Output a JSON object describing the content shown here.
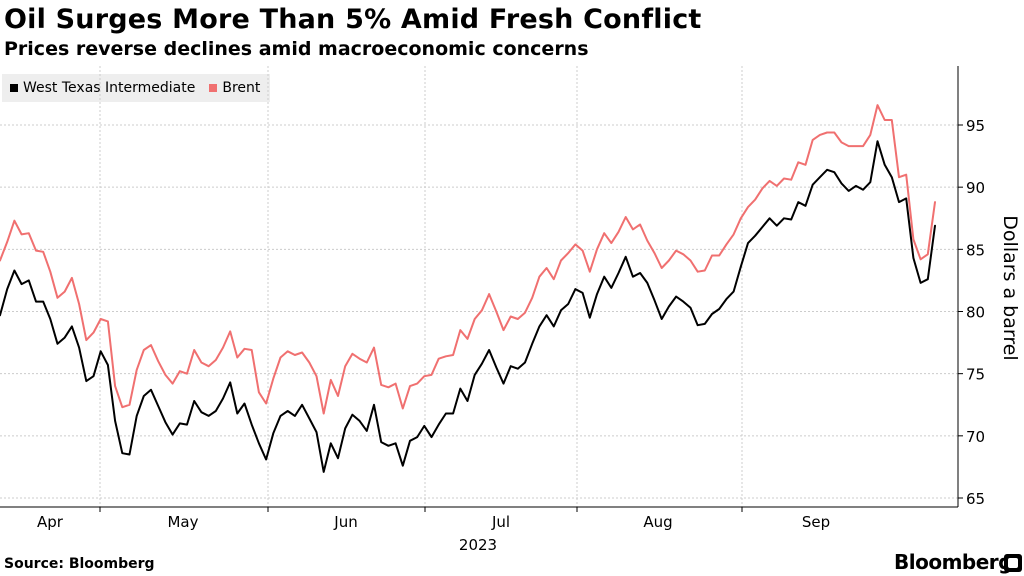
{
  "header": {
    "title": "Oil Surges More Than 5% Amid Fresh Conflict",
    "subtitle": "Prices reverse declines amid macroeconomic concerns"
  },
  "footer": {
    "source": "Source: Bloomberg",
    "brand": "Bloomberg"
  },
  "chart_data": {
    "type": "line",
    "title": "Oil Surges More Than 5% Amid Fresh Conflict",
    "subtitle": "Prices reverse declines amid macroeconomic concerns",
    "ylabel": "Dollars a barrel",
    "xlabel": "2023",
    "y_axis_position": "right",
    "ylim": [
      64,
      99
    ],
    "yticks": [
      65,
      70,
      75,
      80,
      85,
      90,
      95
    ],
    "x_tick_labels": [
      "Apr",
      "May",
      "Jun",
      "Jul",
      "Aug",
      "Sep"
    ],
    "year_label": "2023",
    "grid": true,
    "legend_position": "top-left",
    "colors": {
      "wti": "#000000",
      "brent": "#f07070",
      "grid": "#cccccc",
      "legend_bg": "#eeeeee"
    },
    "series": [
      {
        "name": "West Texas Intermediate",
        "color": "#000000",
        "values": [
          79.7,
          81.8,
          83.3,
          82.2,
          82.5,
          80.8,
          80.8,
          79.4,
          77.4,
          77.9,
          78.8,
          77.1,
          74.4,
          74.8,
          76.8,
          75.7,
          71.2,
          68.6,
          68.5,
          71.6,
          73.2,
          73.7,
          72.4,
          71.1,
          70.1,
          71.0,
          70.9,
          72.8,
          71.9,
          71.6,
          72.0,
          73.0,
          74.3,
          71.8,
          72.6,
          70.9,
          69.4,
          68.1,
          70.2,
          71.6,
          72.0,
          71.6,
          72.5,
          71.4,
          70.3,
          67.1,
          69.4,
          68.2,
          70.6,
          71.7,
          71.2,
          70.4,
          72.5,
          69.5,
          69.2,
          69.4,
          67.6,
          69.6,
          69.9,
          70.8,
          69.9,
          70.9,
          71.8,
          71.8,
          73.8,
          72.8,
          74.9,
          75.8,
          76.9,
          75.5,
          74.2,
          75.6,
          75.4,
          75.9,
          77.4,
          78.8,
          79.7,
          78.8,
          80.1,
          80.6,
          81.8,
          81.5,
          79.5,
          81.4,
          82.8,
          81.9,
          83.1,
          84.4,
          82.8,
          83.1,
          82.3,
          80.9,
          79.4,
          80.4,
          81.2,
          80.8,
          80.3,
          78.9,
          79.0,
          79.8,
          80.2,
          81.0,
          81.6,
          83.6,
          85.5,
          86.1,
          86.8,
          87.5,
          86.9,
          87.5,
          87.4,
          88.8,
          88.5,
          90.2,
          90.8,
          91.4,
          91.2,
          90.3,
          89.7,
          90.1,
          89.8,
          90.4,
          93.7,
          91.8,
          90.8,
          88.8,
          89.1,
          84.3,
          82.3,
          82.6,
          86.9
        ]
      },
      {
        "name": "Brent",
        "color": "#f07070",
        "values": [
          84.1,
          85.6,
          87.3,
          86.2,
          86.3,
          84.9,
          84.8,
          83.2,
          81.1,
          81.6,
          82.7,
          80.6,
          77.7,
          78.3,
          79.4,
          79.2,
          74.0,
          72.3,
          72.5,
          75.3,
          76.9,
          77.3,
          76.0,
          74.9,
          74.2,
          75.2,
          75.0,
          76.9,
          75.9,
          75.6,
          76.1,
          77.1,
          78.4,
          76.3,
          77.0,
          76.9,
          73.5,
          72.6,
          74.6,
          76.3,
          76.8,
          76.5,
          76.7,
          75.9,
          74.8,
          71.8,
          74.5,
          73.2,
          75.6,
          76.6,
          76.2,
          75.9,
          77.1,
          74.1,
          73.9,
          74.2,
          72.2,
          74.0,
          74.2,
          74.8,
          74.9,
          76.2,
          76.4,
          76.5,
          78.5,
          77.8,
          79.4,
          80.1,
          81.4,
          80.0,
          78.5,
          79.6,
          79.4,
          79.9,
          81.1,
          82.8,
          83.5,
          82.6,
          84.1,
          84.7,
          85.4,
          84.9,
          83.2,
          85.0,
          86.3,
          85.5,
          86.4,
          87.6,
          86.6,
          87.0,
          85.7,
          84.7,
          83.5,
          84.1,
          84.9,
          84.6,
          84.1,
          83.2,
          83.3,
          84.5,
          84.5,
          85.4,
          86.2,
          87.5,
          88.4,
          89.0,
          89.9,
          90.5,
          90.1,
          90.7,
          90.6,
          92.0,
          91.8,
          93.8,
          94.2,
          94.4,
          94.4,
          93.6,
          93.3,
          93.3,
          93.3,
          94.2,
          96.6,
          95.4,
          95.4,
          90.8,
          91.0,
          85.8,
          84.2,
          84.6,
          88.8
        ]
      }
    ]
  }
}
